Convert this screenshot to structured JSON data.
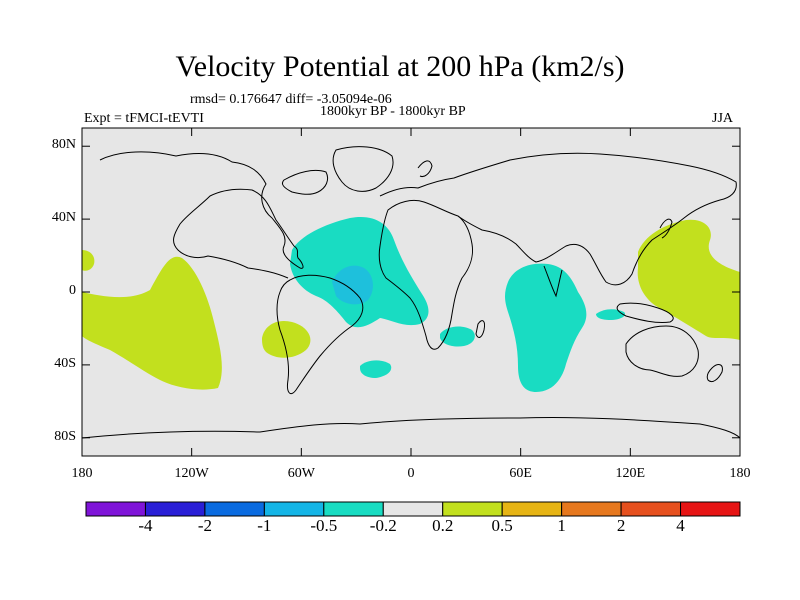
{
  "title": "Velocity Potential at 200 hPa (km2/s)",
  "stats_line": "rmsd= 0.176647 diff= -3.05094e-06",
  "left_label": "Expt = tFMCI-tEVTI",
  "center_label": "1800kyr BP - 1800kyr BP",
  "right_label": "JJA",
  "lat_ticks": [
    {
      "label": "80N",
      "value": 80
    },
    {
      "label": "40N",
      "value": 40
    },
    {
      "label": "0",
      "value": 0
    },
    {
      "label": "40S",
      "value": -40
    },
    {
      "label": "80S",
      "value": -80
    }
  ],
  "lon_ticks": [
    {
      "label": "180",
      "value": -180
    },
    {
      "label": "120W",
      "value": -120
    },
    {
      "label": "60W",
      "value": -60
    },
    {
      "label": "0",
      "value": 0
    },
    {
      "label": "60E",
      "value": 60
    },
    {
      "label": "120E",
      "value": 120
    },
    {
      "label": "180",
      "value": 180
    }
  ],
  "colorbar": {
    "labels": [
      "-4",
      "-2",
      "-1",
      "-0.5",
      "-0.2",
      "0.2",
      "0.5",
      "1",
      "2",
      "4"
    ],
    "colors": [
      "#7f14d8",
      "#2a1fd6",
      "#0a6be0",
      "#14b5e6",
      "#19dcc2",
      "#e6e6e6",
      "#c2e01e",
      "#e6b414",
      "#e6781e",
      "#e6501e",
      "#e61414"
    ]
  },
  "colors": {
    "ocean": "#e6e6e6",
    "coast": "#000000",
    "negative_light": "#19dcc2",
    "negative_mid": "#1ec0dc",
    "positive_light": "#c2e01e"
  }
}
